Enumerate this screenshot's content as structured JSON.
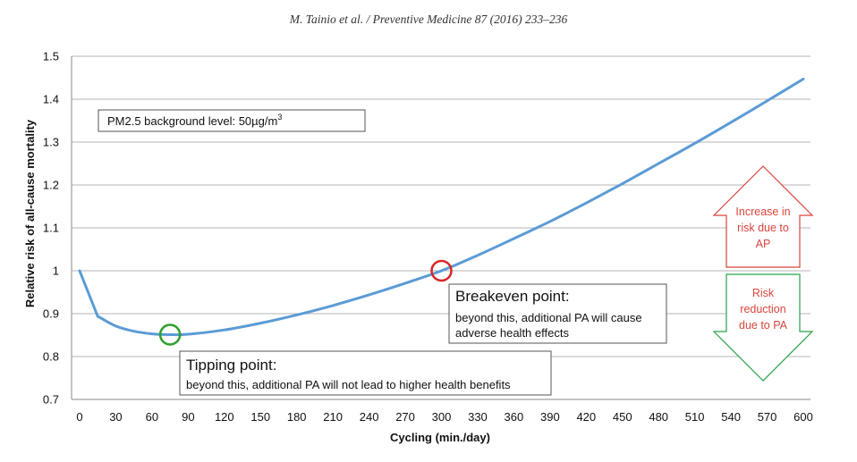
{
  "header": "M. Tainio et al. / Preventive Medicine 87 (2016) 233–236",
  "chart_data": {
    "type": "line",
    "xlabel": "Cycling (min./day)",
    "ylabel": "Relative risk of all-cause mortality",
    "xlim": [
      0,
      600
    ],
    "ylim": [
      0.7,
      1.5
    ],
    "xticks": [
      0,
      30,
      60,
      90,
      120,
      150,
      180,
      210,
      240,
      270,
      300,
      330,
      360,
      390,
      420,
      450,
      480,
      510,
      540,
      570,
      600
    ],
    "yticks": [
      0.7,
      0.8,
      0.9,
      1,
      1.1,
      1.2,
      1.3,
      1.4,
      1.5
    ],
    "ytick_labels": [
      "0.7",
      "0.8",
      "0.9",
      "1",
      "1.1",
      "1.2",
      "1.3",
      "1.4",
      "1.5"
    ],
    "grid": "horizontal",
    "series": [
      {
        "color": "#5b9bd5",
        "x": [
          0,
          15,
          30,
          45,
          60,
          75,
          90,
          120,
          150,
          180,
          210,
          240,
          270,
          300,
          330,
          360,
          390,
          420,
          450,
          480,
          510,
          540,
          570,
          600
        ],
        "y": [
          1.0,
          0.894,
          0.871,
          0.859,
          0.853,
          0.851,
          0.852,
          0.862,
          0.878,
          0.897,
          0.919,
          0.944,
          0.971,
          1.0,
          1.036,
          1.075,
          1.115,
          1.158,
          1.203,
          1.25,
          1.297,
          1.346,
          1.396,
          1.447
        ]
      }
    ],
    "annotations": {
      "background_box": {
        "prefix": "PM2.5 background level: 50µg/m",
        "superscript": "3"
      },
      "breakeven": {
        "x": 300,
        "y": 1.0,
        "marker_color": "#d62728",
        "title": "Breakeven point:",
        "lines": [
          "beyond this, additional PA will cause",
          "adverse health effects"
        ]
      },
      "tipping": {
        "x": 75,
        "y": 0.851,
        "marker_color": "#2ca02c",
        "title": "Tipping point:",
        "lines": [
          "beyond this, additional PA will not lead to higher health benefits"
        ]
      },
      "increase_arrow": {
        "lines": [
          "Increase in",
          "risk due to",
          "AP"
        ],
        "color": "#d9453b"
      },
      "reduction_arrow": {
        "lines": [
          "Risk",
          "reduction",
          "due to PA"
        ],
        "color": "#27a04a"
      }
    }
  }
}
